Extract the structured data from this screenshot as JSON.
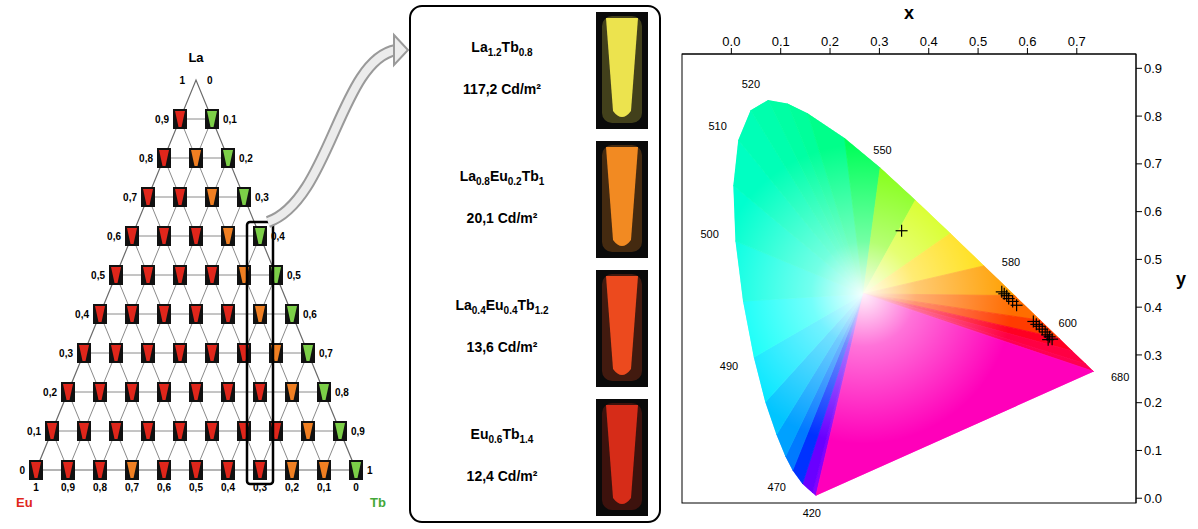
{
  "ternary": {
    "vertices": [
      {
        "label": "La",
        "color": "#000000"
      },
      {
        "label": "Eu",
        "color": "#e0261b"
      },
      {
        "label": "Tb",
        "color": "#43a838"
      }
    ],
    "left_ticks": [
      1,
      {
        "value": 0.9,
        "label": "0,9"
      },
      {
        "value": 0.8,
        "label": "0,8"
      },
      {
        "value": 0.7,
        "label": "0,7"
      },
      {
        "value": 0.6,
        "label": "0,6"
      },
      {
        "value": 0.5,
        "label": "0,5"
      },
      {
        "value": 0.4,
        "label": "0,4"
      },
      {
        "value": 0.3,
        "label": "0,3"
      },
      {
        "value": 0.2,
        "label": "0,2"
      },
      {
        "value": 0.1,
        "label": "0,1"
      },
      0
    ],
    "right_ticks": [
      0,
      {
        "value": 0.1,
        "label": "0,1"
      },
      {
        "value": 0.2,
        "label": "0,2"
      },
      {
        "value": 0.3,
        "label": "0,3"
      },
      {
        "value": 0.4,
        "label": "0,4"
      },
      {
        "value": 0.5,
        "label": "0,5"
      },
      {
        "value": 0.6,
        "label": "0,6"
      },
      {
        "value": 0.7,
        "label": "0,7"
      },
      {
        "value": 0.8,
        "label": "0,8"
      },
      {
        "value": 0.9,
        "label": "0,9"
      },
      1
    ],
    "bottom_ticks": [
      1,
      {
        "value": 0.9,
        "label": "0,9"
      },
      {
        "value": 0.8,
        "label": "0,8"
      },
      {
        "value": 0.7,
        "label": "0,7"
      },
      {
        "value": 0.6,
        "label": "0,6"
      },
      {
        "value": 0.5,
        "label": "0,5"
      },
      {
        "value": 0.4,
        "label": "0,4"
      },
      {
        "value": 0.3,
        "label": "0,3"
      },
      {
        "value": 0.2,
        "label": "0,2"
      },
      {
        "value": 0.1,
        "label": "0,1"
      },
      0
    ],
    "rows": [
      {
        "La": 0.9,
        "colors": [
          "#e0261b",
          "#7ccf48"
        ]
      },
      {
        "La": 0.8,
        "colors": [
          "#e0261b",
          "#f07f22",
          "#7ccf48"
        ]
      },
      {
        "La": 0.7,
        "colors": [
          "#e0261b",
          "#e0261b",
          "#f07f22",
          "#7ccf48"
        ]
      },
      {
        "La": 0.6,
        "colors": [
          "#e0261b",
          "#e0261b",
          "#e0261b",
          "#f07f22",
          "#7ccf48"
        ]
      },
      {
        "La": 0.5,
        "colors": [
          "#e0261b",
          "#e0261b",
          "#e0261b",
          "#e0261b",
          "#f07f22",
          "#7ccf48"
        ]
      },
      {
        "La": 0.4,
        "colors": [
          "#e0261b",
          "#e0261b",
          "#e0261b",
          "#e0261b",
          "#e0261b",
          "#f07f22",
          "#7ccf48"
        ]
      },
      {
        "La": 0.3,
        "colors": [
          "#e0261b",
          "#e0261b",
          "#e0261b",
          "#e0261b",
          "#e0261b",
          "#e0261b",
          "#f07f22",
          "#7ccf48"
        ]
      },
      {
        "La": 0.2,
        "colors": [
          "#e0261b",
          "#e0261b",
          "#e0261b",
          "#e0261b",
          "#e0261b",
          "#e0261b",
          "#e0261b",
          "#f07f22",
          "#7ccf48"
        ]
      },
      {
        "La": 0.1,
        "colors": [
          "#e0261b",
          "#e0261b",
          "#e0261b",
          "#e0261b",
          "#e0261b",
          "#e0261b",
          "#e0261b",
          "#e0261b",
          "#f07f22",
          "#7ccf48"
        ]
      },
      {
        "La": 0,
        "colors": [
          "#e0261b",
          "#e0261b",
          "#e0261b",
          "#f07f22",
          "#e0261b",
          "#e0261b",
          "#e0261b",
          "#e0261b",
          "#f07f22",
          "#f07f22",
          "#7ccf48"
        ]
      }
    ]
  },
  "inset": {
    "samples": [
      {
        "formula": "La1.2Tb0.8",
        "luminance": "117,2 Cd/m²",
        "color": "#ece34e"
      },
      {
        "formula": "La0.8Eu0.2Tb1",
        "luminance": "20,1 Cd/m²",
        "color": "#f28a22"
      },
      {
        "formula": "La0.4Eu0.4Tb1.2",
        "luminance": "13,6 Cd/m²",
        "color": "#ec4a1e"
      },
      {
        "formula": "Eu0.6Tb1.4",
        "luminance": "12,4 Cd/m²",
        "color": "#d62c18"
      }
    ]
  },
  "chart_data": {
    "type": "scatter",
    "x_label": "x",
    "y_label": "y",
    "xlim": [
      -0.1,
      0.82
    ],
    "ylim": [
      -0.01,
      0.93
    ],
    "xticks": [
      {
        "value": 0,
        "label": "0.0"
      },
      0.1,
      0.2,
      0.3,
      0.4,
      0.5,
      0.6,
      0.7
    ],
    "yticks": [
      {
        "value": 0,
        "label": "0.0"
      },
      0.1,
      0.2,
      0.3,
      0.4,
      0.5,
      0.6,
      0.7,
      0.8,
      0.9
    ],
    "x": [
      0.345,
      0.548,
      0.553,
      0.558,
      0.562,
      0.57,
      0.578,
      0.612,
      0.618,
      0.624,
      0.63,
      0.636,
      0.64,
      0.645,
      0.65,
      0.642
    ],
    "values": [
      0.56,
      0.432,
      0.428,
      0.424,
      0.418,
      0.412,
      0.404,
      0.37,
      0.364,
      0.36,
      0.354,
      0.348,
      0.342,
      0.338,
      0.333,
      0.332
    ],
    "color": "#000000",
    "marker": "plus",
    "spectral_locus": {
      "wavelengths": [
        420,
        440,
        460,
        470,
        475,
        480,
        485,
        490,
        495,
        500,
        505,
        510,
        515,
        520,
        525,
        530,
        540,
        550,
        560,
        570,
        580,
        590,
        600,
        610,
        620,
        640,
        680
      ],
      "x": [
        0.1714,
        0.1644,
        0.144,
        0.1241,
        0.1096,
        0.0913,
        0.0687,
        0.0454,
        0.0235,
        0.0082,
        0.0039,
        0.0139,
        0.0389,
        0.0743,
        0.1142,
        0.1547,
        0.2296,
        0.3016,
        0.3731,
        0.4441,
        0.5125,
        0.5752,
        0.627,
        0.6658,
        0.6915,
        0.719,
        0.7347
      ],
      "y": [
        0.0051,
        0.0109,
        0.0297,
        0.0578,
        0.0868,
        0.1327,
        0.2007,
        0.295,
        0.4127,
        0.5384,
        0.6548,
        0.7502,
        0.812,
        0.8338,
        0.8262,
        0.8059,
        0.7543,
        0.6923,
        0.6245,
        0.5547,
        0.4866,
        0.4242,
        0.3725,
        0.334,
        0.3083,
        0.2809,
        0.2653
      ]
    },
    "wavelength_labels": [
      420,
      470,
      490,
      500,
      510,
      520,
      550,
      580,
      600,
      680
    ]
  }
}
